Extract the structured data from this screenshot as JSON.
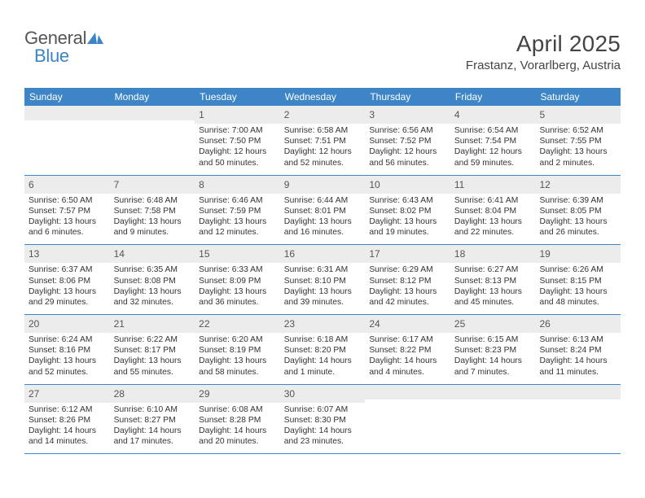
{
  "logo": {
    "text1": "General",
    "text2": "Blue",
    "icon_color": "#3d85c6"
  },
  "header": {
    "month_title": "April 2025",
    "location": "Frastanz, Vorarlberg, Austria"
  },
  "colors": {
    "header_bg": "#3d85c6",
    "header_text": "#ffffff",
    "daynum_bg": "#ececec",
    "rule": "#3d85c6",
    "text": "#333333",
    "logo_gray": "#555555"
  },
  "calendar": {
    "days_of_week": [
      "Sunday",
      "Monday",
      "Tuesday",
      "Wednesday",
      "Thursday",
      "Friday",
      "Saturday"
    ],
    "first_weekday_index": 2,
    "num_days": 30,
    "days": {
      "1": {
        "sunrise": "7:00 AM",
        "sunset": "7:50 PM",
        "daylight": "12 hours and 50 minutes."
      },
      "2": {
        "sunrise": "6:58 AM",
        "sunset": "7:51 PM",
        "daylight": "12 hours and 52 minutes."
      },
      "3": {
        "sunrise": "6:56 AM",
        "sunset": "7:52 PM",
        "daylight": "12 hours and 56 minutes."
      },
      "4": {
        "sunrise": "6:54 AM",
        "sunset": "7:54 PM",
        "daylight": "12 hours and 59 minutes."
      },
      "5": {
        "sunrise": "6:52 AM",
        "sunset": "7:55 PM",
        "daylight": "13 hours and 2 minutes."
      },
      "6": {
        "sunrise": "6:50 AM",
        "sunset": "7:57 PM",
        "daylight": "13 hours and 6 minutes."
      },
      "7": {
        "sunrise": "6:48 AM",
        "sunset": "7:58 PM",
        "daylight": "13 hours and 9 minutes."
      },
      "8": {
        "sunrise": "6:46 AM",
        "sunset": "7:59 PM",
        "daylight": "13 hours and 12 minutes."
      },
      "9": {
        "sunrise": "6:44 AM",
        "sunset": "8:01 PM",
        "daylight": "13 hours and 16 minutes."
      },
      "10": {
        "sunrise": "6:43 AM",
        "sunset": "8:02 PM",
        "daylight": "13 hours and 19 minutes."
      },
      "11": {
        "sunrise": "6:41 AM",
        "sunset": "8:04 PM",
        "daylight": "13 hours and 22 minutes."
      },
      "12": {
        "sunrise": "6:39 AM",
        "sunset": "8:05 PM",
        "daylight": "13 hours and 26 minutes."
      },
      "13": {
        "sunrise": "6:37 AM",
        "sunset": "8:06 PM",
        "daylight": "13 hours and 29 minutes."
      },
      "14": {
        "sunrise": "6:35 AM",
        "sunset": "8:08 PM",
        "daylight": "13 hours and 32 minutes."
      },
      "15": {
        "sunrise": "6:33 AM",
        "sunset": "8:09 PM",
        "daylight": "13 hours and 36 minutes."
      },
      "16": {
        "sunrise": "6:31 AM",
        "sunset": "8:10 PM",
        "daylight": "13 hours and 39 minutes."
      },
      "17": {
        "sunrise": "6:29 AM",
        "sunset": "8:12 PM",
        "daylight": "13 hours and 42 minutes."
      },
      "18": {
        "sunrise": "6:27 AM",
        "sunset": "8:13 PM",
        "daylight": "13 hours and 45 minutes."
      },
      "19": {
        "sunrise": "6:26 AM",
        "sunset": "8:15 PM",
        "daylight": "13 hours and 48 minutes."
      },
      "20": {
        "sunrise": "6:24 AM",
        "sunset": "8:16 PM",
        "daylight": "13 hours and 52 minutes."
      },
      "21": {
        "sunrise": "6:22 AM",
        "sunset": "8:17 PM",
        "daylight": "13 hours and 55 minutes."
      },
      "22": {
        "sunrise": "6:20 AM",
        "sunset": "8:19 PM",
        "daylight": "13 hours and 58 minutes."
      },
      "23": {
        "sunrise": "6:18 AM",
        "sunset": "8:20 PM",
        "daylight": "14 hours and 1 minute."
      },
      "24": {
        "sunrise": "6:17 AM",
        "sunset": "8:22 PM",
        "daylight": "14 hours and 4 minutes."
      },
      "25": {
        "sunrise": "6:15 AM",
        "sunset": "8:23 PM",
        "daylight": "14 hours and 7 minutes."
      },
      "26": {
        "sunrise": "6:13 AM",
        "sunset": "8:24 PM",
        "daylight": "14 hours and 11 minutes."
      },
      "27": {
        "sunrise": "6:12 AM",
        "sunset": "8:26 PM",
        "daylight": "14 hours and 14 minutes."
      },
      "28": {
        "sunrise": "6:10 AM",
        "sunset": "8:27 PM",
        "daylight": "14 hours and 17 minutes."
      },
      "29": {
        "sunrise": "6:08 AM",
        "sunset": "8:28 PM",
        "daylight": "14 hours and 20 minutes."
      },
      "30": {
        "sunrise": "6:07 AM",
        "sunset": "8:30 PM",
        "daylight": "14 hours and 23 minutes."
      }
    },
    "labels": {
      "sunrise_prefix": "Sunrise: ",
      "sunset_prefix": "Sunset: ",
      "daylight_prefix": "Daylight: "
    }
  }
}
